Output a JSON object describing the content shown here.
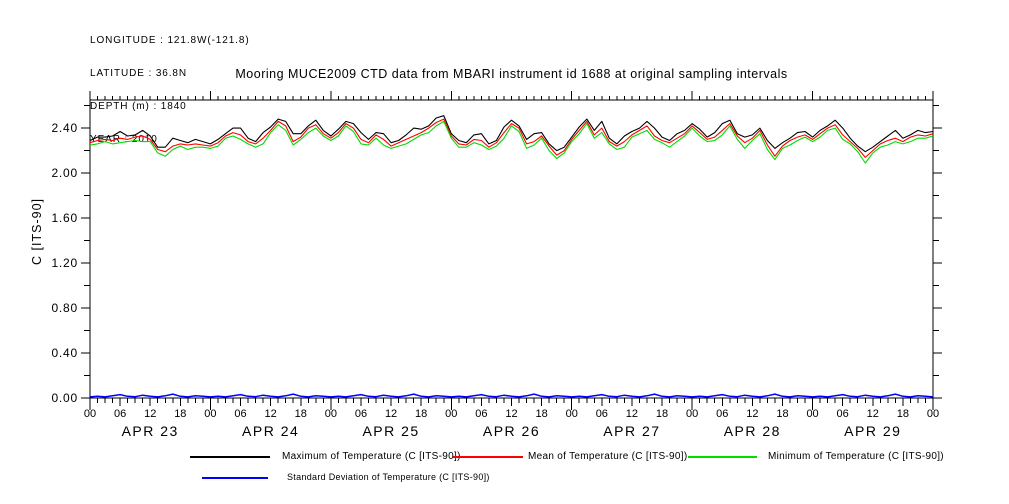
{
  "metadata_block": {
    "lines": [
      "LONGITUDE : 121.8W(-121.8)",
      "LATITUDE : 36.8N",
      "DEPTH (m) : 1840",
      "YEAR : 2010"
    ]
  },
  "title": "Mooring MUCE2009 CTD data from MBARI instrument id 1688 at original sampling intervals",
  "y_axis": {
    "title": "C [ITS-90]"
  },
  "legend": {
    "entries": [
      {
        "label": "Maximum of Temperature (C [ITS-90])",
        "color": "#000000"
      },
      {
        "label": "Mean of Temperature (C [ITS-90])",
        "color": "#ff0000"
      },
      {
        "label": "Minimum of Temperature (C [ITS-90])",
        "color": "#00dd00"
      },
      {
        "label": "Standard Deviation of Temperature (C [ITS-90])",
        "color": "#0000ff"
      }
    ]
  },
  "chart_data": {
    "type": "line",
    "title": "Mooring MUCE2009 CTD data from MBARI instrument id 1688 at original sampling intervals",
    "xlabel": "",
    "ylabel": "C [ITS-90]",
    "ylim": [
      0.0,
      2.65
    ],
    "y_major_tick_step": 0.4,
    "y_minor_tick_step": 0.2,
    "y_tick_labels": [
      "0.00",
      "0.40",
      "0.80",
      "1.20",
      "1.60",
      "2.00",
      "2.40"
    ],
    "x_range_hours": [
      0,
      168
    ],
    "x_step_hours": 1.5,
    "x_day_labels": [
      "APR 23",
      "APR 24",
      "APR 25",
      "APR 26",
      "APR 27",
      "APR 28",
      "APR 29"
    ],
    "x_hour_tick_labels": [
      "00",
      "06",
      "12",
      "18"
    ],
    "grid": false,
    "legend_position": "below",
    "series": [
      {
        "id": "maximum",
        "name": "Maximum of Temperature (C [ITS-90])",
        "color": "#000000",
        "width": 1.1,
        "values": [
          2.29,
          2.32,
          2.32,
          2.33,
          2.37,
          2.33,
          2.34,
          2.38,
          2.33,
          2.23,
          2.23,
          2.31,
          2.29,
          2.27,
          2.3,
          2.28,
          2.26,
          2.3,
          2.35,
          2.4,
          2.4,
          2.31,
          2.28,
          2.36,
          2.41,
          2.48,
          2.46,
          2.35,
          2.35,
          2.42,
          2.47,
          2.38,
          2.33,
          2.39,
          2.46,
          2.44,
          2.36,
          2.3,
          2.36,
          2.35,
          2.27,
          2.29,
          2.34,
          2.4,
          2.39,
          2.42,
          2.49,
          2.51,
          2.35,
          2.29,
          2.27,
          2.34,
          2.35,
          2.26,
          2.29,
          2.41,
          2.47,
          2.42,
          2.3,
          2.35,
          2.36,
          2.26,
          2.2,
          2.23,
          2.32,
          2.41,
          2.48,
          2.38,
          2.46,
          2.31,
          2.26,
          2.33,
          2.37,
          2.4,
          2.46,
          2.4,
          2.32,
          2.29,
          2.35,
          2.38,
          2.44,
          2.39,
          2.32,
          2.36,
          2.44,
          2.47,
          2.35,
          2.32,
          2.34,
          2.4,
          2.29,
          2.22,
          2.27,
          2.31,
          2.36,
          2.37,
          2.32,
          2.38,
          2.42,
          2.47,
          2.4,
          2.31,
          2.24,
          2.19,
          2.23,
          2.28,
          2.33,
          2.38,
          2.31,
          2.34,
          2.38,
          2.36,
          2.37
        ]
      },
      {
        "id": "mean",
        "name": "Mean of Temperature (C [ITS-90])",
        "color": "#ff0000",
        "width": 1.1,
        "values": [
          2.27,
          2.29,
          2.3,
          2.29,
          2.31,
          2.3,
          2.32,
          2.33,
          2.3,
          2.21,
          2.19,
          2.24,
          2.26,
          2.25,
          2.26,
          2.25,
          2.24,
          2.27,
          2.33,
          2.36,
          2.34,
          2.28,
          2.26,
          2.31,
          2.38,
          2.46,
          2.42,
          2.28,
          2.32,
          2.4,
          2.43,
          2.35,
          2.31,
          2.36,
          2.44,
          2.4,
          2.3,
          2.27,
          2.34,
          2.3,
          2.24,
          2.27,
          2.3,
          2.33,
          2.36,
          2.4,
          2.45,
          2.48,
          2.33,
          2.26,
          2.25,
          2.3,
          2.29,
          2.23,
          2.27,
          2.36,
          2.44,
          2.4,
          2.26,
          2.28,
          2.33,
          2.24,
          2.16,
          2.2,
          2.3,
          2.38,
          2.46,
          2.34,
          2.4,
          2.28,
          2.24,
          2.28,
          2.34,
          2.38,
          2.42,
          2.33,
          2.29,
          2.27,
          2.31,
          2.35,
          2.42,
          2.36,
          2.3,
          2.32,
          2.38,
          2.44,
          2.33,
          2.27,
          2.31,
          2.38,
          2.25,
          2.15,
          2.24,
          2.29,
          2.32,
          2.34,
          2.3,
          2.35,
          2.4,
          2.43,
          2.34,
          2.28,
          2.22,
          2.14,
          2.2,
          2.26,
          2.29,
          2.31,
          2.28,
          2.32,
          2.34,
          2.33,
          2.35
        ]
      },
      {
        "id": "minimum",
        "name": "Minimum of Temperature (C [ITS-90])",
        "color": "#00dd00",
        "width": 1.1,
        "values": [
          2.25,
          2.26,
          2.28,
          2.26,
          2.27,
          2.28,
          2.29,
          2.28,
          2.28,
          2.18,
          2.15,
          2.21,
          2.24,
          2.21,
          2.23,
          2.23,
          2.22,
          2.24,
          2.31,
          2.33,
          2.3,
          2.26,
          2.23,
          2.26,
          2.36,
          2.43,
          2.38,
          2.25,
          2.3,
          2.36,
          2.4,
          2.33,
          2.29,
          2.33,
          2.42,
          2.37,
          2.26,
          2.25,
          2.31,
          2.25,
          2.22,
          2.24,
          2.26,
          2.3,
          2.34,
          2.36,
          2.42,
          2.46,
          2.31,
          2.23,
          2.23,
          2.27,
          2.25,
          2.21,
          2.24,
          2.31,
          2.42,
          2.37,
          2.22,
          2.25,
          2.31,
          2.2,
          2.13,
          2.18,
          2.28,
          2.35,
          2.44,
          2.31,
          2.36,
          2.26,
          2.21,
          2.23,
          2.32,
          2.35,
          2.38,
          2.3,
          2.27,
          2.23,
          2.28,
          2.33,
          2.4,
          2.33,
          2.28,
          2.29,
          2.34,
          2.42,
          2.3,
          2.22,
          2.29,
          2.35,
          2.21,
          2.12,
          2.22,
          2.25,
          2.29,
          2.32,
          2.28,
          2.32,
          2.38,
          2.4,
          2.3,
          2.26,
          2.19,
          2.09,
          2.18,
          2.23,
          2.25,
          2.28,
          2.26,
          2.28,
          2.31,
          2.31,
          2.33
        ]
      },
      {
        "id": "std-dev",
        "name": "Standard Deviation of Temperature (C [ITS-90])",
        "color": "#0000ff",
        "width": 1.5,
        "values": [
          0.01,
          0.015,
          0.01,
          0.02,
          0.03,
          0.015,
          0.012,
          0.025,
          0.015,
          0.01,
          0.02,
          0.035,
          0.015,
          0.01,
          0.02,
          0.015,
          0.01,
          0.015,
          0.01,
          0.02,
          0.03,
          0.015,
          0.012,
          0.025,
          0.015,
          0.01,
          0.02,
          0.035,
          0.015,
          0.01,
          0.02,
          0.015,
          0.01,
          0.015,
          0.01,
          0.02,
          0.03,
          0.015,
          0.012,
          0.025,
          0.015,
          0.01,
          0.02,
          0.035,
          0.015,
          0.01,
          0.02,
          0.015,
          0.01,
          0.015,
          0.01,
          0.02,
          0.03,
          0.015,
          0.012,
          0.025,
          0.015,
          0.01,
          0.02,
          0.035,
          0.015,
          0.01,
          0.02,
          0.015,
          0.01,
          0.015,
          0.01,
          0.02,
          0.03,
          0.015,
          0.012,
          0.025,
          0.015,
          0.01,
          0.02,
          0.035,
          0.015,
          0.01,
          0.02,
          0.015,
          0.01,
          0.015,
          0.01,
          0.02,
          0.03,
          0.015,
          0.012,
          0.025,
          0.015,
          0.01,
          0.02,
          0.035,
          0.015,
          0.01,
          0.02,
          0.015,
          0.01,
          0.015,
          0.01,
          0.02,
          0.03,
          0.015,
          0.012,
          0.025,
          0.015,
          0.01,
          0.02,
          0.035,
          0.015,
          0.01,
          0.02,
          0.015,
          0.01
        ]
      }
    ]
  }
}
